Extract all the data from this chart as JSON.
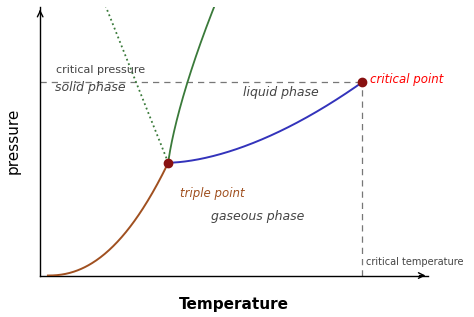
{
  "xlabel": "Temperature",
  "ylabel": "pressure",
  "background_color": "#ffffff",
  "triple_point": [
    0.33,
    0.42
  ],
  "critical_point": [
    0.83,
    0.72
  ],
  "critical_pressure_label": "critical pressure",
  "critical_temperature_label": "critical temperature",
  "solid_phase_label": "solid phase",
  "liquid_phase_label": "liquid phase",
  "gaseous_phase_label": "gaseous phase",
  "triple_point_label": "triple point",
  "critical_point_label": "critical point",
  "solid_gas_color": "#a05020",
  "solid_liquid_color_solid": "#3a7a3a",
  "solid_liquid_color_dotted": "#3a7a3a",
  "liquid_gas_color": "#3333bb",
  "dashed_color": "#777777",
  "point_color": "#881111",
  "font_color": "#444444",
  "label_fontstyle": "italic",
  "label_fontsize": 9,
  "axis_label_fontsize": 11
}
